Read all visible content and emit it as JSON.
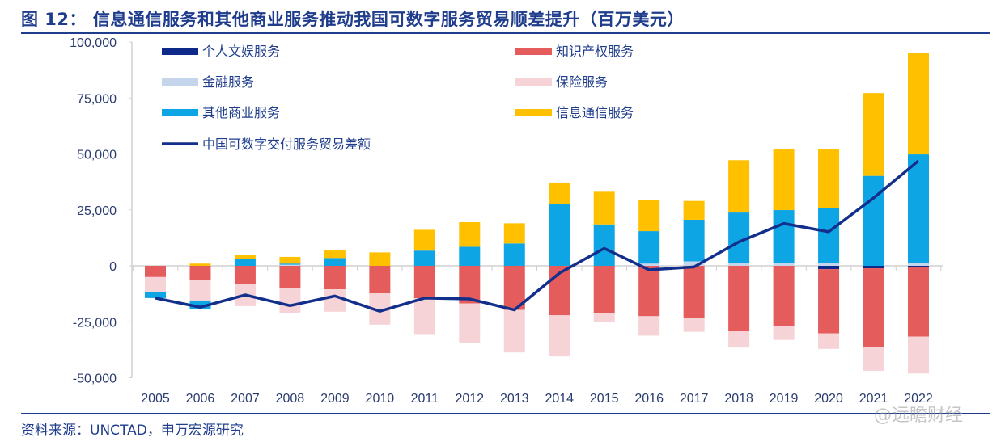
{
  "title": "图 12：  信息通信服务和其他商业服务推动我国可数字服务贸易顺差提升（百万美元）",
  "source": "资料来源：UNCTAD，申万宏源研究",
  "watermark": "@远瞻财经",
  "chart_data": {
    "type": "bar",
    "stacked": true,
    "title": "",
    "xlabel": "",
    "ylabel": "",
    "ylim": [
      -50000,
      100000
    ],
    "yticks": [
      100000,
      75000,
      50000,
      25000,
      0,
      -25000,
      -50000
    ],
    "ytick_labels": [
      "100,000",
      "75,000",
      "50,000",
      "25,000",
      "0",
      "-25,000",
      "-50,000"
    ],
    "grid": false,
    "legend_position": "top-left",
    "categories": [
      "2005",
      "2006",
      "2007",
      "2008",
      "2009",
      "2010",
      "2011",
      "2012",
      "2013",
      "2014",
      "2015",
      "2016",
      "2017",
      "2018",
      "2019",
      "2020",
      "2021",
      "2022"
    ],
    "series": [
      {
        "name": "个人文娱服务",
        "color": "#0d2a8a",
        "values": [
          0,
          0,
          0,
          0,
          0,
          0,
          0,
          0,
          0,
          0,
          0,
          0,
          0,
          0,
          0,
          -1500,
          -1100,
          -600
        ]
      },
      {
        "name": "知识产权服务",
        "color": "#e55c5c",
        "values": [
          -5000,
          -6500,
          -8000,
          -9800,
          -10500,
          -12300,
          -14500,
          -16800,
          -19700,
          -22100,
          -21000,
          -22500,
          -23500,
          -29300,
          -27100,
          -28700,
          -35000,
          -31000
        ]
      },
      {
        "name": "金融服务",
        "color": "#c5d6ec",
        "values": [
          0,
          0,
          0,
          500,
          0,
          0,
          0,
          0,
          0,
          0,
          0,
          1000,
          2000,
          1400,
          1400,
          1200,
          0,
          1200
        ]
      },
      {
        "name": "保险服务",
        "color": "#f6d3d6",
        "values": [
          -6900,
          -9000,
          -10000,
          -11500,
          -10000,
          -14000,
          -16000,
          -17500,
          -19000,
          -18400,
          -4300,
          -8700,
          -6000,
          -7200,
          -6000,
          -6900,
          -10800,
          -16500
        ]
      },
      {
        "name": "其他商业服务",
        "color": "#0ea5e4",
        "values": [
          -2500,
          -4000,
          3000,
          500,
          3500,
          0,
          6800,
          8500,
          10000,
          27800,
          18500,
          14500,
          18600,
          22400,
          23500,
          24700,
          40200,
          48600
        ]
      },
      {
        "name": "信息通信服务",
        "color": "#ffc000",
        "values": [
          0,
          1000,
          2000,
          3000,
          3500,
          6000,
          9300,
          11000,
          9000,
          9400,
          14600,
          13900,
          8400,
          23400,
          27100,
          26400,
          37000,
          45200
        ]
      }
    ],
    "line": {
      "name": "中国可数字交付服务贸易差额",
      "color": "#132f8c",
      "values": [
        -14400,
        -18500,
        -13000,
        -17800,
        -13500,
        -20300,
        -14400,
        -14800,
        -19700,
        -3300,
        7800,
        -1800,
        -500,
        10700,
        18900,
        15200,
        30300,
        46900
      ]
    }
  }
}
